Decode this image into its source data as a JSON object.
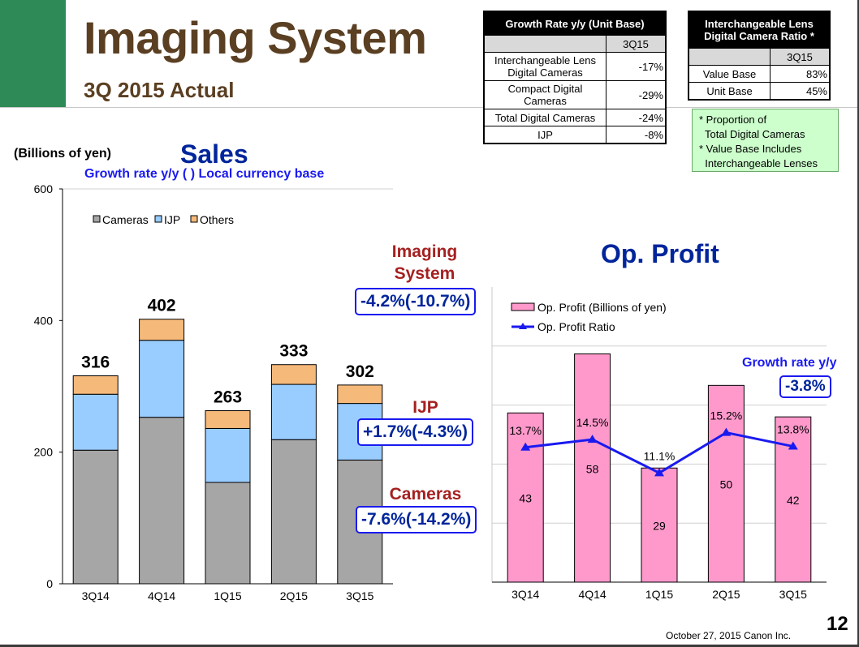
{
  "header": {
    "title": "Imaging System",
    "subtitle": "3Q 2015 Actual"
  },
  "growth_table": {
    "title": "Growth Rate y/y  (Unit Base)",
    "column": "3Q15",
    "rows": [
      {
        "label": "Interchangeable Lens Digital Cameras",
        "value": "-17%"
      },
      {
        "label": "Compact Digital Cameras",
        "value": "-29%"
      },
      {
        "label": "Total Digital Cameras",
        "value": "-24%"
      },
      {
        "label": "IJP",
        "value": "-8%"
      }
    ]
  },
  "ratio_table": {
    "title": "Interchangeable Lens Digital Camera Ratio *",
    "column": "3Q15",
    "rows": [
      {
        "label": "Value Base",
        "value": "83%"
      },
      {
        "label": "Unit Base",
        "value": "45%"
      }
    ]
  },
  "ratio_note": {
    "lines": [
      "* Proportion of",
      "  Total Digital Cameras",
      "* Value Base Includes",
      "  Interchangeable Lenses"
    ]
  },
  "sales_section": {
    "unit_label": "(Billions of yen)",
    "title": "Sales",
    "growth_note": "Growth rate y/y  ( ) Local currency base",
    "segments": [
      {
        "label": "Imaging System",
        "growth": "-4.2%(-10.7%)"
      },
      {
        "label": "IJP",
        "growth": "+1.7%(-4.3%)"
      },
      {
        "label": "Cameras",
        "growth": "-7.6%(-14.2%)"
      }
    ]
  },
  "op_section": {
    "title": "Op. Profit",
    "growth_label": "Growth rate y/y",
    "growth_value": "-3.8%"
  },
  "colors": {
    "cameras": "#a6a6a6",
    "ijp": "#99ccff",
    "others": "#f5b97a",
    "op_bar": "#ff99cc",
    "op_line": "#1a1af0"
  },
  "chart_data": [
    {
      "type": "bar",
      "stacked": true,
      "title": "Sales",
      "ylabel": "(Billions of yen)",
      "categories": [
        "3Q14",
        "4Q14",
        "1Q15",
        "2Q15",
        "3Q15"
      ],
      "yticks": [
        0,
        200,
        400,
        600
      ],
      "ylim": [
        0,
        600
      ],
      "legend_position": "top-left",
      "series": [
        {
          "name": "Cameras",
          "values": [
            203,
            253,
            154,
            219,
            188
          ]
        },
        {
          "name": "IJP",
          "values": [
            85,
            117,
            82,
            84,
            86
          ]
        },
        {
          "name": "Others",
          "values": [
            28,
            32,
            27,
            30,
            28
          ]
        }
      ],
      "totals": [
        "316",
        "402",
        "263",
        "333",
        "302"
      ]
    },
    {
      "type": "bar",
      "title": "Op. Profit",
      "categories": [
        "3Q14",
        "4Q14",
        "1Q15",
        "2Q15",
        "3Q15"
      ],
      "ylim": [
        0,
        75
      ],
      "legend_position": "top-left",
      "series": [
        {
          "name": "Op. Profit (Billions of yen)",
          "values": [
            43,
            58,
            29,
            50,
            42
          ],
          "labels": [
            "43",
            "58",
            "29",
            "50",
            "42"
          ]
        },
        {
          "name": "Op. Profit Ratio",
          "type": "line",
          "values": [
            13.7,
            14.5,
            11.1,
            15.2,
            13.8
          ],
          "labels": [
            "13.7%",
            "14.5%",
            "11.1%",
            "15.2%",
            "13.8%"
          ]
        }
      ]
    }
  ],
  "footer": {
    "date": "October 27, 2015 Canon Inc.",
    "page": "12"
  }
}
